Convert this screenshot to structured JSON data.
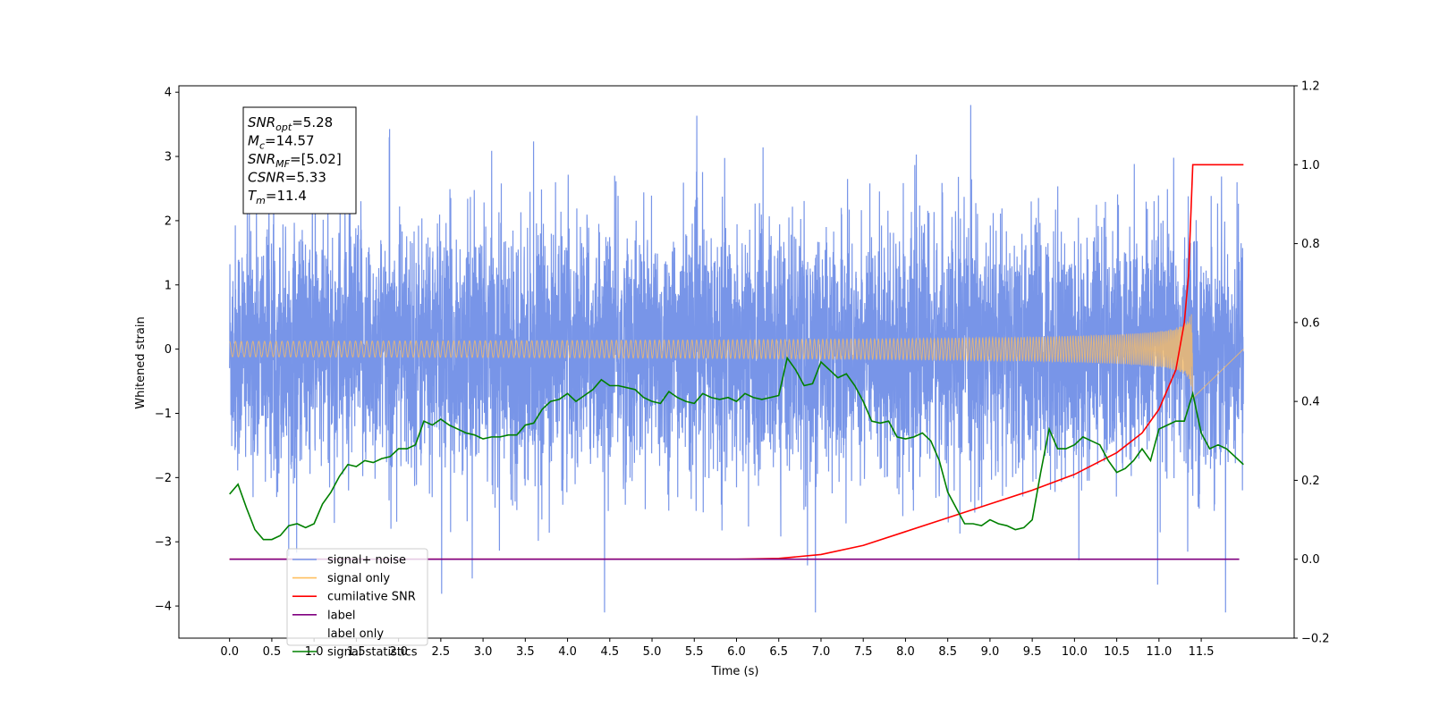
{
  "chart_data": {
    "type": "line",
    "xlabel": "Time (s)",
    "ylabel": "Whitened strain",
    "x_range": [
      -0.6,
      12.6
    ],
    "y_left_range": [
      -4.5,
      4.1
    ],
    "y_right_range": [
      -0.2,
      1.2
    ],
    "x_ticks": [
      "0.0",
      "0.5",
      "1.0",
      "1.5",
      "2.0",
      "2.5",
      "3.0",
      "3.5",
      "4.0",
      "4.5",
      "5.0",
      "5.5",
      "6.0",
      "6.5",
      "7.0",
      "7.5",
      "8.0",
      "8.5",
      "9.0",
      "9.5",
      "10.0",
      "10.5",
      "11.0",
      "11.5"
    ],
    "y_left_ticks": [
      "4",
      "3",
      "2",
      "1",
      "0",
      "−1",
      "−2",
      "−3",
      "−4"
    ],
    "y_right_ticks": [
      "1.2",
      "1.0",
      "0.8",
      "0.6",
      "0.4",
      "0.2",
      "0.0",
      "−0.2"
    ],
    "grid": false,
    "legend_position": "lower-left",
    "info_box": {
      "lines": [
        {
          "sym": "SNR",
          "sub": "opt",
          "rest": "=5.28"
        },
        {
          "sym": "M",
          "sub": "c",
          "rest": "=14.57"
        },
        {
          "sym": "SNR",
          "sub": "MF",
          "rest": "=[5.02]"
        },
        {
          "sym": "CSNR",
          "sub": "",
          "rest": "=5.33"
        },
        {
          "sym": "T",
          "sub": "m",
          "rest": "=11.4"
        }
      ]
    },
    "series": [
      {
        "name": "signal+ noise",
        "axis": "left",
        "color": "#7895e8",
        "description": "noisy strain, roughly ±1.9 envelope with spikes to ±3.5, spanning 0.0 to 12.0 s",
        "x_range": [
          0.0,
          12.0
        ]
      },
      {
        "name": "signal only",
        "axis": "left",
        "color": "#ffbf5f",
        "description": "chirp waveform near zero growing to amplitude ~0.9 at 11.4 s",
        "merger_time": 11.4,
        "peak_amplitude": 0.9
      },
      {
        "name": "cumilative SNR",
        "axis": "right",
        "color": "#ff0000",
        "x": [
          0.0,
          6.0,
          6.5,
          7.0,
          7.5,
          8.0,
          8.5,
          9.0,
          9.5,
          10.0,
          10.5,
          10.8,
          11.0,
          11.2,
          11.3,
          11.35,
          11.4,
          12.0
        ],
        "y": [
          0.0,
          0.0,
          0.002,
          0.012,
          0.035,
          0.07,
          0.105,
          0.14,
          0.175,
          0.215,
          0.27,
          0.32,
          0.38,
          0.48,
          0.6,
          0.72,
          1.0,
          1.0
        ]
      },
      {
        "name": "label",
        "axis": "right",
        "color": "#800080",
        "x": [
          0.0,
          11.95
        ],
        "y": [
          0.0,
          0.0
        ]
      },
      {
        "name": "label only",
        "axis": "right",
        "color": "#ffffff",
        "x": [],
        "y": []
      },
      {
        "name": "signal statistics",
        "axis": "right",
        "color": "#008000",
        "x": [
          0.0,
          0.1,
          0.2,
          0.3,
          0.4,
          0.5,
          0.6,
          0.7,
          0.8,
          0.9,
          1.0,
          1.1,
          1.2,
          1.3,
          1.4,
          1.5,
          1.6,
          1.7,
          1.8,
          1.9,
          2.0,
          2.1,
          2.2,
          2.3,
          2.4,
          2.5,
          2.6,
          2.7,
          2.8,
          2.9,
          3.0,
          3.1,
          3.2,
          3.3,
          3.4,
          3.5,
          3.6,
          3.7,
          3.8,
          3.9,
          4.0,
          4.1,
          4.2,
          4.3,
          4.4,
          4.5,
          4.6,
          4.7,
          4.8,
          4.9,
          5.0,
          5.1,
          5.2,
          5.3,
          5.4,
          5.5,
          5.6,
          5.7,
          5.8,
          5.9,
          6.0,
          6.1,
          6.2,
          6.3,
          6.4,
          6.5,
          6.6,
          6.7,
          6.8,
          6.9,
          7.0,
          7.1,
          7.2,
          7.3,
          7.4,
          7.5,
          7.6,
          7.7,
          7.8,
          7.9,
          8.0,
          8.1,
          8.2,
          8.3,
          8.4,
          8.5,
          8.6,
          8.7,
          8.8,
          8.9,
          9.0,
          9.1,
          9.2,
          9.3,
          9.4,
          9.5,
          9.6,
          9.7,
          9.8,
          9.9,
          10.0,
          10.1,
          10.2,
          10.3,
          10.4,
          10.5,
          10.6,
          10.7,
          10.8,
          10.9,
          11.0,
          11.1,
          11.2,
          11.3,
          11.4,
          11.5,
          11.6,
          11.7,
          11.8,
          11.9,
          12.0
        ],
        "y": [
          0.165,
          0.19,
          0.13,
          0.075,
          0.05,
          0.05,
          0.06,
          0.085,
          0.09,
          0.08,
          0.09,
          0.14,
          0.17,
          0.21,
          0.24,
          0.235,
          0.25,
          0.245,
          0.255,
          0.26,
          0.28,
          0.28,
          0.29,
          0.35,
          0.34,
          0.355,
          0.34,
          0.33,
          0.32,
          0.315,
          0.305,
          0.31,
          0.31,
          0.315,
          0.315,
          0.34,
          0.345,
          0.38,
          0.4,
          0.405,
          0.42,
          0.4,
          0.415,
          0.43,
          0.455,
          0.44,
          0.44,
          0.435,
          0.43,
          0.41,
          0.4,
          0.395,
          0.425,
          0.41,
          0.4,
          0.395,
          0.42,
          0.41,
          0.405,
          0.41,
          0.4,
          0.42,
          0.41,
          0.405,
          0.41,
          0.415,
          0.51,
          0.48,
          0.44,
          0.445,
          0.5,
          0.48,
          0.46,
          0.47,
          0.44,
          0.4,
          0.35,
          0.345,
          0.35,
          0.31,
          0.305,
          0.31,
          0.32,
          0.3,
          0.25,
          0.17,
          0.13,
          0.09,
          0.09,
          0.085,
          0.1,
          0.09,
          0.085,
          0.075,
          0.08,
          0.1,
          0.22,
          0.33,
          0.28,
          0.28,
          0.29,
          0.31,
          0.3,
          0.29,
          0.25,
          0.22,
          0.23,
          0.25,
          0.28,
          0.25,
          0.33,
          0.34,
          0.35,
          0.35,
          0.42,
          0.32,
          0.28,
          0.29,
          0.28,
          0.26,
          0.24
        ]
      }
    ]
  }
}
